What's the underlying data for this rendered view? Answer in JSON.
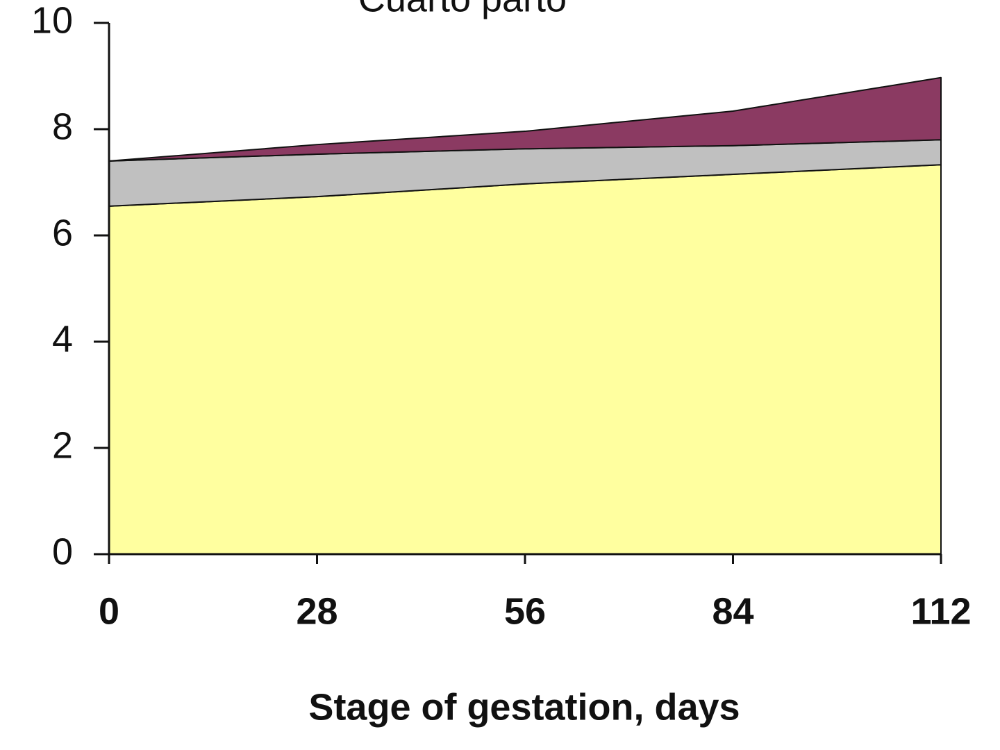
{
  "chart_data": {
    "type": "stacked-area",
    "title": "Cuarto parto",
    "x_label": "Stage of gestation, days",
    "x": [
      0,
      28,
      56,
      84,
      112
    ],
    "series": [
      {
        "color": "#ffff9f",
        "values": [
          6.55,
          6.73,
          6.97,
          7.15,
          7.33
        ]
      },
      {
        "color": "#c0c0c0",
        "values": [
          0.85,
          0.8,
          0.66,
          0.54,
          0.47
        ]
      },
      {
        "color": "#8b3a62",
        "values": [
          0,
          0.18,
          0.33,
          0.65,
          1.17
        ]
      }
    ],
    "xlim": [
      0,
      112
    ],
    "xticks": [
      0,
      28,
      56,
      84,
      112
    ],
    "ylim": [
      0,
      10
    ],
    "yticks": [
      0,
      2,
      4,
      6,
      8,
      10
    ]
  }
}
